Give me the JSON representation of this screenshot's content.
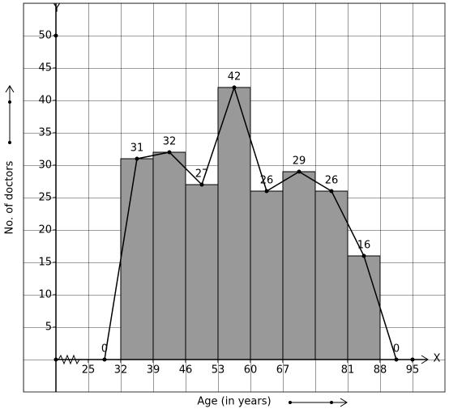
{
  "chart_data": {
    "type": "histogram",
    "x_label": "Age (in years)",
    "y_label": "No. of doctors",
    "x_axis_letter": "X",
    "y_axis_letter": "Y",
    "bins": [
      32,
      39,
      46,
      53,
      60,
      67,
      74,
      81,
      88
    ],
    "values": [
      31,
      32,
      27,
      42,
      26,
      29,
      26,
      16
    ],
    "color": "#999999",
    "polygon": {
      "x": [
        28.5,
        35.5,
        42.5,
        49.5,
        56.5,
        63.5,
        70.5,
        77.5,
        84.5,
        91.5
      ],
      "values": [
        0,
        31,
        32,
        27,
        42,
        26,
        29,
        26,
        16,
        0
      ]
    },
    "xlim": [
      11,
      102
    ],
    "ylim": [
      -5,
      55
    ],
    "xticks": [
      25,
      32,
      39,
      46,
      53,
      60,
      67,
      81,
      88,
      95
    ],
    "yticks": [
      5,
      10,
      15,
      20,
      25,
      30,
      35,
      40,
      45,
      50
    ],
    "grid": true
  }
}
